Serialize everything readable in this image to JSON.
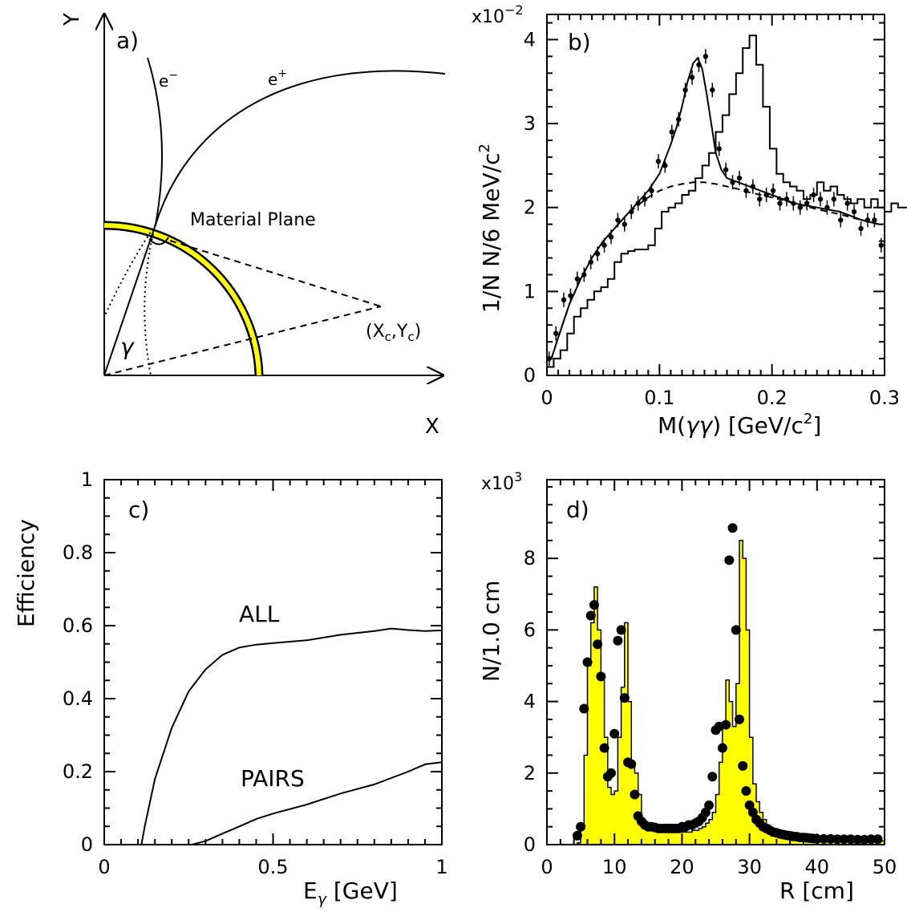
{
  "panel_a": {
    "label": "a)",
    "axis_x": "X",
    "axis_y": "Y",
    "electron": "e",
    "electron_sup": "−",
    "positron": "e",
    "positron_sup": "+",
    "plane_label": "Material Plane",
    "gamma": "γ",
    "center_label": "(X",
    "center_sub1": "c",
    "center_mid": ",Y",
    "center_sub2": "c",
    "center_close": ")",
    "colors": {
      "plane_fill": "#ffff00",
      "stroke": "#000000"
    }
  },
  "chart_data": [
    {
      "panel": "b",
      "type": "line",
      "label": "b)",
      "exponent_base": "x10",
      "exponent": "−2",
      "ylabel": "1/N N/6 MeV/c",
      "ylabel_sup": "2",
      "xlabel_pre": "M(",
      "xlabel_gamma": "γγ",
      "xlabel_post": ") [GeV/c",
      "xlabel_sup": "2",
      "xlabel_close": "]",
      "xlim": [
        0,
        0.3
      ],
      "ylim": [
        0,
        4.3
      ],
      "xticks": [
        "0",
        "0.1",
        "0.2",
        "0.3"
      ],
      "yticks": [
        "0",
        "1",
        "2",
        "3",
        "4"
      ],
      "series": [
        {
          "style": "histogram",
          "step": 0.006,
          "values": [
            0.1,
            0.2,
            0.3,
            0.5,
            0.7,
            0.8,
            0.9,
            1.0,
            1.05,
            1.15,
            1.35,
            1.45,
            1.48,
            1.5,
            1.5,
            1.55,
            1.75,
            1.95,
            2.0,
            2.05,
            2.15,
            2.2,
            2.35,
            2.5,
            2.65,
            2.9,
            3.1,
            3.35,
            3.6,
            3.9,
            4.05,
            3.7,
            3.2,
            2.7,
            2.4,
            2.3,
            2.25,
            2.2,
            2.1,
            2.15,
            2.3,
            2.2,
            2.25,
            2.15,
            2.1,
            2.05,
            2.1,
            2.0,
            2.1,
            2.0,
            1.95,
            2.05,
            2.0,
            2.0,
            1.9,
            1.95,
            2.0,
            1.85,
            1.75,
            1.8,
            1.75,
            1.8,
            1.85,
            1.8,
            1.75,
            1.7,
            1.75,
            1.8,
            1.75,
            1.7
          ]
        },
        {
          "style": "points",
          "x": [
            0.002,
            0.008,
            0.015,
            0.021,
            0.027,
            0.033,
            0.039,
            0.045,
            0.051,
            0.057,
            0.063,
            0.069,
            0.075,
            0.081,
            0.087,
            0.093,
            0.099,
            0.105,
            0.111,
            0.117,
            0.123,
            0.129,
            0.135,
            0.141,
            0.147,
            0.153,
            0.159,
            0.165,
            0.171,
            0.177,
            0.183,
            0.189,
            0.195,
            0.201,
            0.207,
            0.213,
            0.219,
            0.225,
            0.231,
            0.237,
            0.243,
            0.249,
            0.255,
            0.261,
            0.267,
            0.273,
            0.279,
            0.285,
            0.291,
            0.297
          ],
          "y": [
            0.2,
            0.5,
            0.9,
            0.95,
            1.15,
            1.2,
            1.35,
            1.45,
            1.55,
            1.65,
            1.85,
            1.8,
            1.95,
            2.05,
            2.1,
            2.2,
            2.55,
            2.5,
            2.9,
            3.05,
            3.4,
            3.55,
            3.7,
            3.8,
            3.4,
            2.7,
            2.45,
            2.3,
            2.35,
            2.2,
            2.25,
            2.1,
            2.15,
            2.2,
            2.05,
            2.1,
            2.05,
            2.0,
            2.05,
            2.15,
            2.1,
            2.0,
            2.1,
            1.85,
            2.05,
            1.95,
            1.75,
            1.85,
            1.85,
            1.55
          ]
        },
        {
          "style": "solid-fit",
          "x": [
            0.004,
            0.01,
            0.02,
            0.03,
            0.04,
            0.05,
            0.06,
            0.07,
            0.08,
            0.09,
            0.1,
            0.11,
            0.115,
            0.12,
            0.125,
            0.13,
            0.134,
            0.138,
            0.142,
            0.146,
            0.15,
            0.155,
            0.16,
            0.17,
            0.18,
            0.19,
            0.2,
            0.22,
            0.24,
            0.26,
            0.28,
            0.295
          ],
          "y": [
            0.2,
            0.45,
            0.85,
            1.15,
            1.4,
            1.6,
            1.75,
            1.9,
            2.05,
            2.2,
            2.4,
            2.75,
            2.95,
            3.2,
            3.5,
            3.72,
            3.78,
            3.65,
            3.35,
            3.0,
            2.65,
            2.45,
            2.35,
            2.3,
            2.25,
            2.2,
            2.15,
            2.05,
            2.0,
            1.95,
            1.85,
            1.8
          ]
        },
        {
          "style": "dashed-background",
          "x": [
            0.004,
            0.01,
            0.02,
            0.03,
            0.04,
            0.05,
            0.06,
            0.07,
            0.08,
            0.09,
            0.1,
            0.11,
            0.12,
            0.13,
            0.14,
            0.15,
            0.16,
            0.17,
            0.18,
            0.2,
            0.22,
            0.24,
            0.26,
            0.28,
            0.295
          ],
          "y": [
            0.2,
            0.45,
            0.85,
            1.15,
            1.4,
            1.6,
            1.75,
            1.9,
            2.02,
            2.12,
            2.2,
            2.25,
            2.28,
            2.3,
            2.3,
            2.28,
            2.25,
            2.22,
            2.18,
            2.12,
            2.05,
            1.98,
            1.92,
            1.85,
            1.8
          ]
        }
      ]
    },
    {
      "panel": "c",
      "type": "line",
      "label": "c)",
      "ylabel": "Efficiency",
      "xlabel_main": "E",
      "xlabel_sub": "γ",
      "xlabel_unit": " [GeV]",
      "xlim": [
        0,
        1
      ],
      "ylim": [
        0,
        1
      ],
      "xticks": [
        "0",
        "0.5",
        "1"
      ],
      "yticks": [
        "0",
        "0.2",
        "0.4",
        "0.6",
        "0.8",
        "1"
      ],
      "series": [
        {
          "name": "ALL",
          "x": [
            0.0,
            0.11,
            0.12,
            0.15,
            0.2,
            0.25,
            0.3,
            0.35,
            0.4,
            0.45,
            0.5,
            0.6,
            0.7,
            0.8,
            0.85,
            0.9,
            0.95,
            1.0
          ],
          "y": [
            0.0,
            0.0,
            0.05,
            0.18,
            0.32,
            0.42,
            0.48,
            0.52,
            0.54,
            0.548,
            0.552,
            0.56,
            0.575,
            0.585,
            0.592,
            0.588,
            0.585,
            0.587
          ]
        },
        {
          "name": "PAIRS",
          "x": [
            0.0,
            0.26,
            0.3,
            0.35,
            0.4,
            0.45,
            0.5,
            0.6,
            0.7,
            0.8,
            0.9,
            0.95,
            1.0
          ],
          "y": [
            0.0,
            0.0,
            0.01,
            0.03,
            0.05,
            0.07,
            0.085,
            0.11,
            0.14,
            0.165,
            0.2,
            0.22,
            0.226
          ]
        }
      ]
    },
    {
      "panel": "d",
      "type": "bar",
      "label": "d)",
      "exponent_base": "x10",
      "exponent": "3",
      "ylabel": "N/1.0 cm",
      "xlabel": "R [cm]",
      "xlim": [
        0,
        50
      ],
      "ylim": [
        0,
        10.2
      ],
      "xticks": [
        "0",
        "10",
        "20",
        "30",
        "40",
        "50"
      ],
      "yticks": [
        "0",
        "2",
        "4",
        "6",
        "8"
      ],
      "series": [
        {
          "style": "yellow-histogram",
          "step": 0.5,
          "values": [
            0,
            0,
            0,
            0,
            0,
            0,
            0,
            0,
            0,
            0.05,
            0.5,
            2.5,
            5.0,
            6.2,
            7.2,
            6.0,
            4.6,
            3.0,
            1.6,
            1.4,
            1.5,
            3.0,
            4.4,
            6.2,
            4.0,
            2.2,
            2.0,
            1.4,
            0.7,
            0.55,
            0.5,
            0.45,
            0.4,
            0.4,
            0.38,
            0.36,
            0.35,
            0.35,
            0.35,
            0.35,
            0.35,
            0.35,
            0.35,
            0.4,
            0.4,
            0.45,
            0.5,
            0.6,
            0.7,
            0.9,
            1.4,
            2.3,
            3.4,
            4.6,
            4.0,
            3.3,
            4.5,
            8.5,
            8.0,
            6.0,
            3.0,
            1.7,
            1.2,
            0.9,
            0.7,
            0.55,
            0.45,
            0.4,
            0.35,
            0.3,
            0.28,
            0.25,
            0.22,
            0.2,
            0.2,
            0.18,
            0.18,
            0.16,
            0.15,
            0.15,
            0.15,
            0.14,
            0.13,
            0.13,
            0.12,
            0.12,
            0.12,
            0.11,
            0.1,
            0.1,
            0.1,
            0.1,
            0.1,
            0.1,
            0.1,
            0.1,
            0.1,
            0.1,
            0.1,
            0.1
          ]
        },
        {
          "style": "points",
          "x": [
            4.5,
            5.0,
            5.5,
            6.0,
            6.5,
            7.0,
            7.5,
            8.0,
            8.5,
            9.0,
            9.5,
            10.0,
            10.5,
            11.0,
            11.5,
            12.0,
            12.5,
            13.0,
            13.5,
            14.0,
            14.5,
            15.0,
            15.5,
            16.0,
            16.5,
            17.0,
            17.5,
            18.0,
            18.5,
            19.0,
            19.5,
            20.0,
            20.5,
            21.0,
            21.5,
            22.0,
            22.5,
            23.0,
            23.5,
            24.0,
            24.5,
            25.0,
            25.5,
            26.0,
            26.5,
            27.0,
            27.5,
            28.0,
            28.5,
            29.0,
            29.5,
            30.0,
            30.5,
            31.0,
            31.5,
            32.0,
            32.5,
            33.0,
            33.5,
            34.0,
            34.5,
            35.0,
            35.5,
            36.0,
            36.5,
            37.0,
            37.5,
            38.0,
            38.5,
            39.0,
            39.5,
            40.0,
            41.0,
            42.0,
            43.0,
            44.0,
            45.0,
            46.0,
            47.0,
            48.0,
            49.0
          ],
          "y": [
            0.25,
            0.5,
            3.8,
            5.1,
            6.4,
            6.7,
            5.6,
            4.7,
            2.7,
            1.9,
            2.0,
            3.1,
            5.7,
            6.0,
            4.1,
            2.3,
            2.25,
            1.4,
            0.8,
            0.65,
            0.55,
            0.5,
            0.5,
            0.48,
            0.45,
            0.45,
            0.45,
            0.45,
            0.45,
            0.45,
            0.45,
            0.5,
            0.5,
            0.55,
            0.55,
            0.6,
            0.65,
            0.75,
            0.9,
            1.1,
            1.9,
            3.2,
            3.3,
            2.7,
            3.35,
            7.95,
            8.85,
            6.0,
            3.5,
            2.2,
            1.5,
            1.1,
            0.9,
            0.7,
            0.6,
            0.5,
            0.45,
            0.4,
            0.35,
            0.33,
            0.3,
            0.28,
            0.26,
            0.25,
            0.23,
            0.22,
            0.2,
            0.2,
            0.19,
            0.18,
            0.17,
            0.16,
            0.16,
            0.16,
            0.15,
            0.15,
            0.15,
            0.14,
            0.14,
            0.15,
            0.15
          ]
        }
      ]
    }
  ]
}
